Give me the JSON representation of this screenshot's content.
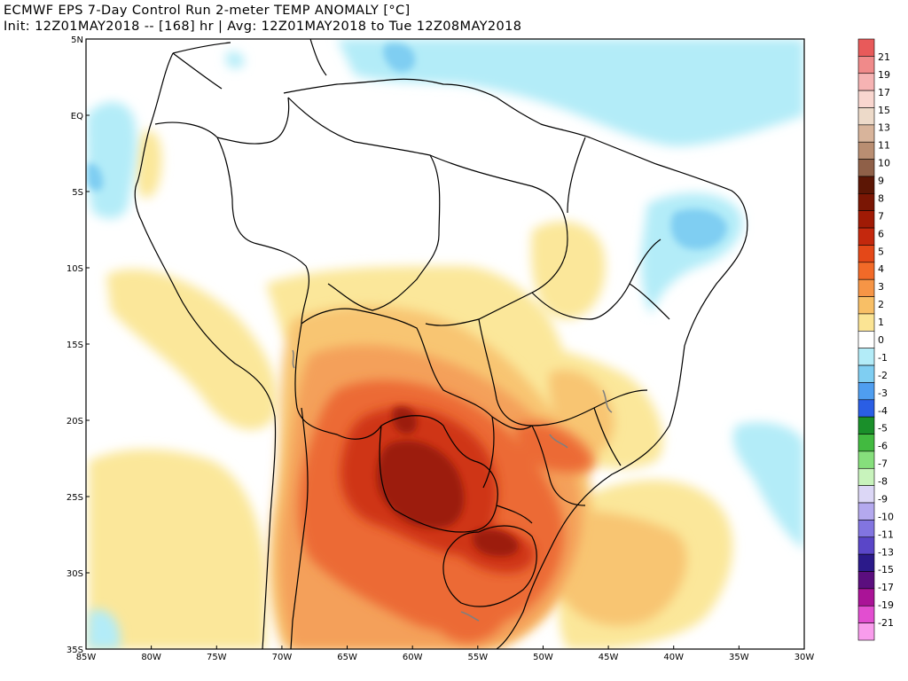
{
  "header": {
    "title_line1": "ECMWF EPS 7-Day Control Run 2-meter TEMP ANOMALY [°C]",
    "title_line2": "Init: 12Z01MAY2018 -- [168] hr | Avg: 12Z01MAY2018 to Tue 12Z08MAY2018"
  },
  "map": {
    "lon_ticks": [
      "85W",
      "80W",
      "75W",
      "70W",
      "65W",
      "60W",
      "55W",
      "50W",
      "45W",
      "40W",
      "35W",
      "30W"
    ],
    "lat_ticks": [
      "5N",
      "EQ",
      "5S",
      "10S",
      "15S",
      "20S",
      "25S",
      "30S",
      "35S"
    ],
    "colors": {
      "land_border": "#000000",
      "lake": "#7f7f7f"
    }
  },
  "colorbar": {
    "labels": [
      "21",
      "19",
      "17",
      "15",
      "13",
      "11",
      "10",
      "9",
      "8",
      "7",
      "6",
      "5",
      "4",
      "3",
      "2",
      "1",
      "0",
      "-1",
      "-2",
      "-3",
      "-4",
      "-5",
      "-6",
      "-7",
      "-8",
      "-9",
      "-10",
      "-11",
      "-13",
      "-15",
      "-17",
      "-19",
      "-21"
    ],
    "colors": [
      "#e85a5a",
      "#f08a8a",
      "#f6b3b3",
      "#f9d6cf",
      "#eddac9",
      "#d8b49b",
      "#b98e72",
      "#8f6048",
      "#5c1605",
      "#7a1604",
      "#a01a05",
      "#c4280d",
      "#e44818",
      "#f26a28",
      "#f69546",
      "#f8bf66",
      "#fbe494",
      "#ffffff",
      "#b3ecf8",
      "#7fcef2",
      "#4f9ef0",
      "#2a5ee5",
      "#1a8f2a",
      "#42ba40",
      "#86df7c",
      "#c8f3bc",
      "#dcd7f6",
      "#b4a9ee",
      "#8275e0",
      "#5a46c8",
      "#2b1a8a",
      "#5b0e7e",
      "#aa1397",
      "#e24ed0",
      "#f99cec"
    ]
  }
}
